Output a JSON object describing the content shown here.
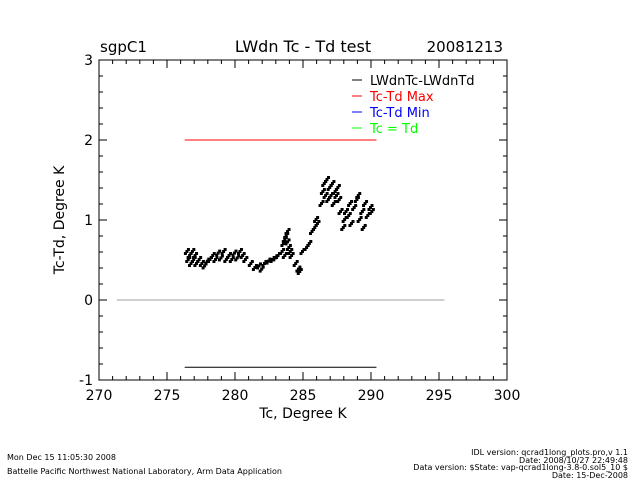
{
  "chart_data": {
    "type": "scatter",
    "title": "LWdn Tc - Td test",
    "site": "sgpC1",
    "date": "20081213",
    "xlabel": "Tc, Degree K",
    "ylabel": "Tc-Td, Degree K",
    "xlim": [
      270,
      300
    ],
    "ylim": [
      -1,
      3
    ],
    "xticks": [
      "270",
      "275",
      "280",
      "285",
      "290",
      "295",
      "300"
    ],
    "yticks": [
      "-1",
      "0",
      "1",
      "2",
      "3"
    ],
    "grid": false,
    "legend_position": "top-right",
    "legend": [
      {
        "label": "LWdnTc-LWdnTd",
        "color": "#000000"
      },
      {
        "label": "Tc-Td Max",
        "color": "#ff0000"
      },
      {
        "label": "Tc-Td Min",
        "color": "#0000ff"
      },
      {
        "label": "Tc = Td",
        "color": "#00ff00"
      }
    ],
    "reference_lines": [
      {
        "name": "max",
        "y": 2.0,
        "x": [
          276.3,
          290.4
        ],
        "color": "#ff0000"
      },
      {
        "name": "min",
        "y": -0.84,
        "x": [
          276.3,
          290.4
        ],
        "color": "#000000"
      },
      {
        "name": "zero",
        "y": 0,
        "x": [
          271.3,
          295.4
        ],
        "color": "#a0a0a0"
      }
    ],
    "points": [
      [
        276.5,
        0.6
      ],
      [
        276.6,
        0.5
      ],
      [
        276.7,
        0.55
      ],
      [
        276.8,
        0.45
      ],
      [
        276.9,
        0.6
      ],
      [
        277.0,
        0.5
      ],
      [
        277.1,
        0.55
      ],
      [
        277.2,
        0.45
      ],
      [
        277.4,
        0.5
      ],
      [
        277.6,
        0.45
      ],
      [
        277.8,
        0.42
      ],
      [
        278.0,
        0.48
      ],
      [
        278.2,
        0.5
      ],
      [
        278.4,
        0.55
      ],
      [
        278.6,
        0.5
      ],
      [
        278.8,
        0.58
      ],
      [
        279.0,
        0.52
      ],
      [
        279.2,
        0.6
      ],
      [
        279.4,
        0.5
      ],
      [
        279.6,
        0.55
      ],
      [
        279.8,
        0.5
      ],
      [
        280.0,
        0.58
      ],
      [
        280.2,
        0.52
      ],
      [
        280.4,
        0.6
      ],
      [
        280.6,
        0.55
      ],
      [
        280.8,
        0.5
      ],
      [
        281.2,
        0.45
      ],
      [
        281.5,
        0.4
      ],
      [
        281.8,
        0.42
      ],
      [
        282.0,
        0.38
      ],
      [
        282.2,
        0.45
      ],
      [
        282.5,
        0.48
      ],
      [
        282.8,
        0.5
      ],
      [
        283.0,
        0.52
      ],
      [
        283.2,
        0.55
      ],
      [
        283.5,
        0.6
      ],
      [
        283.6,
        0.7
      ],
      [
        283.7,
        0.75
      ],
      [
        283.8,
        0.8
      ],
      [
        283.9,
        0.72
      ],
      [
        284.0,
        0.65
      ],
      [
        284.1,
        0.6
      ],
      [
        284.2,
        0.55
      ],
      [
        283.7,
        0.55
      ],
      [
        283.9,
        0.85
      ],
      [
        284.5,
        0.45
      ],
      [
        284.7,
        0.38
      ],
      [
        284.8,
        0.35
      ],
      [
        285.0,
        0.6
      ],
      [
        285.3,
        0.65
      ],
      [
        285.5,
        0.7
      ],
      [
        285.7,
        0.85
      ],
      [
        285.9,
        0.9
      ],
      [
        286.0,
        1.0
      ],
      [
        286.1,
        0.95
      ],
      [
        286.4,
        1.2
      ],
      [
        286.5,
        1.35
      ],
      [
        286.6,
        1.45
      ],
      [
        286.7,
        1.3
      ],
      [
        286.8,
        1.5
      ],
      [
        286.9,
        1.25
      ],
      [
        287.0,
        1.4
      ],
      [
        287.1,
        1.3
      ],
      [
        287.2,
        1.45
      ],
      [
        287.3,
        1.2
      ],
      [
        287.4,
        1.35
      ],
      [
        287.5,
        1.3
      ],
      [
        287.6,
        1.4
      ],
      [
        287.7,
        1.25
      ],
      [
        287.8,
        1.1
      ],
      [
        288.0,
        0.9
      ],
      [
        288.1,
        1.0
      ],
      [
        288.2,
        1.1
      ],
      [
        288.4,
        1.05
      ],
      [
        288.5,
        1.2
      ],
      [
        288.6,
        0.95
      ],
      [
        288.8,
        1.15
      ],
      [
        289.0,
        1.25
      ],
      [
        289.1,
        1.3
      ],
      [
        289.2,
        1.0
      ],
      [
        289.4,
        1.1
      ],
      [
        289.6,
        1.2
      ],
      [
        289.8,
        1.05
      ],
      [
        290.0,
        1.15
      ],
      [
        290.1,
        1.1
      ],
      [
        289.5,
        0.9
      ]
    ]
  },
  "footer": {
    "timestamp": "Mon Dec 15 11:05:30 2008",
    "org": "Battelle Pacific Northwest National Laboratory, Arm Data Application",
    "idl_version": "IDL version: qcrad1long_plots.pro,v 1.1",
    "idl_date": "Date: 2008/10/27 22:49:48",
    "data_version": "Data version: $State: vap-qcrad1long-3.8-0.sol5_10 $",
    "data_date": "Date: 15-Dec-2008"
  }
}
